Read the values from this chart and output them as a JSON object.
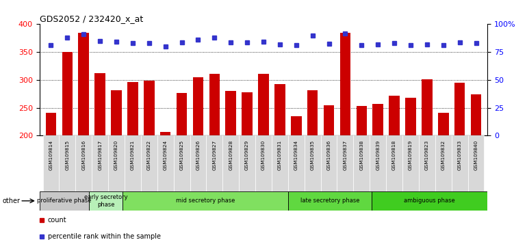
{
  "title": "GDS2052 / 232420_x_at",
  "samples": [
    "GSM109814",
    "GSM109815",
    "GSM109816",
    "GSM109817",
    "GSM109820",
    "GSM109821",
    "GSM109822",
    "GSM109824",
    "GSM109825",
    "GSM109826",
    "GSM109827",
    "GSM109828",
    "GSM109829",
    "GSM109830",
    "GSM109831",
    "GSM109834",
    "GSM109835",
    "GSM109836",
    "GSM109837",
    "GSM109838",
    "GSM109839",
    "GSM109818",
    "GSM109819",
    "GSM109823",
    "GSM109832",
    "GSM109833",
    "GSM109840"
  ],
  "counts": [
    241,
    350,
    384,
    312,
    281,
    296,
    299,
    207,
    276,
    305,
    311,
    280,
    278,
    311,
    292,
    235,
    281,
    254,
    385,
    253,
    257,
    271,
    268,
    301,
    241,
    295,
    274
  ],
  "percentiles": [
    363,
    376,
    382,
    370,
    368,
    366,
    366,
    360,
    367,
    372,
    376,
    367,
    367,
    368,
    364,
    362,
    380,
    365,
    383,
    362,
    364,
    366,
    363,
    364,
    362,
    367,
    366
  ],
  "bar_color": "#cc0000",
  "dot_color": "#3333cc",
  "ylim_left": [
    200,
    400
  ],
  "yticks_left": [
    200,
    250,
    300,
    350,
    400
  ],
  "yticks_right": [
    0,
    25,
    50,
    75,
    100
  ],
  "right_tick_labels": [
    "0",
    "25",
    "50",
    "75",
    "100%"
  ],
  "phases": [
    {
      "label": "proliferative phase",
      "start": 0,
      "end": 3,
      "color": "#c8c8c8"
    },
    {
      "label": "early secretory\nphase",
      "start": 3,
      "end": 5,
      "color": "#b8f0b8"
    },
    {
      "label": "mid secretory phase",
      "start": 5,
      "end": 15,
      "color": "#80e060"
    },
    {
      "label": "late secretory phase",
      "start": 15,
      "end": 20,
      "color": "#60d840"
    },
    {
      "label": "ambiguous phase",
      "start": 20,
      "end": 27,
      "color": "#40cc20"
    }
  ],
  "background_color": "#ffffff",
  "bar_bottom": 200,
  "tick_bg_color": "#d8d8d8"
}
